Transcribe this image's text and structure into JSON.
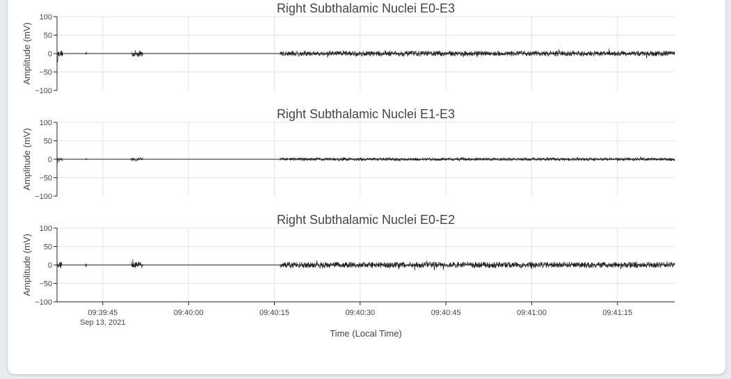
{
  "chart_data": [
    {
      "type": "line",
      "title": "Right Subthalamic Nuclei E0-E3",
      "xlabel": "",
      "ylabel": "Amplitude (mV)",
      "ylim": [
        -100,
        100
      ],
      "y_ticks": [
        100,
        50,
        0,
        -50,
        -100
      ],
      "y_tick_labels": [
        "100",
        "50",
        "0",
        "−50",
        "−100"
      ],
      "grid": true,
      "series": [
        {
          "segments": [
            {
              "x_start": "09:39:37",
              "x_end": "09:39:38",
              "amplitude_mv": 8,
              "onset_dip_mv": -25
            },
            {
              "x_start": "09:39:42",
              "x_end": "09:39:42.2",
              "amplitude_mv": 6,
              "onset_dip_mv": 0
            },
            {
              "x_start": "09:39:50",
              "x_end": "09:39:52",
              "amplitude_mv": 9,
              "onset_dip_mv": 0
            },
            {
              "x_start": "09:40:16",
              "x_end": "09:41:25",
              "amplitude_mv": 7,
              "onset_dip_mv": 0
            }
          ]
        }
      ]
    },
    {
      "type": "line",
      "title": "Right Subthalamic Nuclei E1-E3",
      "xlabel": "",
      "ylabel": "Amplitude (mV)",
      "ylim": [
        -100,
        100
      ],
      "y_ticks": [
        100,
        50,
        0,
        -50,
        -100
      ],
      "y_tick_labels": [
        "100",
        "50",
        "0",
        "−50",
        "−100"
      ],
      "grid": true,
      "series": [
        {
          "segments": [
            {
              "x_start": "09:39:37",
              "x_end": "09:39:38",
              "amplitude_mv": 4,
              "onset_dip_mv": -16
            },
            {
              "x_start": "09:39:42",
              "x_end": "09:39:42.2",
              "amplitude_mv": 3,
              "onset_dip_mv": 0
            },
            {
              "x_start": "09:39:50",
              "x_end": "09:39:52",
              "amplitude_mv": 5,
              "onset_dip_mv": 0
            },
            {
              "x_start": "09:40:16",
              "x_end": "09:41:25",
              "amplitude_mv": 4,
              "onset_dip_mv": 0
            }
          ]
        }
      ]
    },
    {
      "type": "line",
      "title": "Right Subthalamic Nuclei E0-E2",
      "xlabel": "Time (Local Time)",
      "ylabel": "Amplitude (mV)",
      "ylim": [
        -100,
        100
      ],
      "y_ticks": [
        100,
        50,
        0,
        -50,
        -100
      ],
      "y_tick_labels": [
        "100",
        "50",
        "0",
        "−50",
        "−100"
      ],
      "x_range": [
        "09:39:37",
        "09:41:25"
      ],
      "x_ticks": [
        "09:39:45",
        "09:40:00",
        "09:40:15",
        "09:40:30",
        "09:40:45",
        "09:41:00",
        "09:41:15"
      ],
      "x_tick_sublabel": "Sep 13, 2021",
      "grid": true,
      "series": [
        {
          "segments": [
            {
              "x_start": "09:39:37",
              "x_end": "09:39:38",
              "amplitude_mv": 8,
              "onset_dip_mv": 0
            },
            {
              "x_start": "09:39:42",
              "x_end": "09:39:42.2",
              "amplitude_mv": 6,
              "onset_dip_mv": 0
            },
            {
              "x_start": "09:39:50",
              "x_end": "09:39:52",
              "amplitude_mv": 9,
              "onset_dip_mv": 0
            },
            {
              "x_start": "09:40:16",
              "x_end": "09:41:25",
              "amplitude_mv": 8,
              "onset_dip_mv": 0
            }
          ]
        }
      ]
    }
  ],
  "colors": {
    "trace": "#1a1a1a",
    "grid": "#e3e3e3",
    "axis": "#222222",
    "text": "#444444",
    "card": "#ffffff",
    "page": "#e9ecef"
  }
}
